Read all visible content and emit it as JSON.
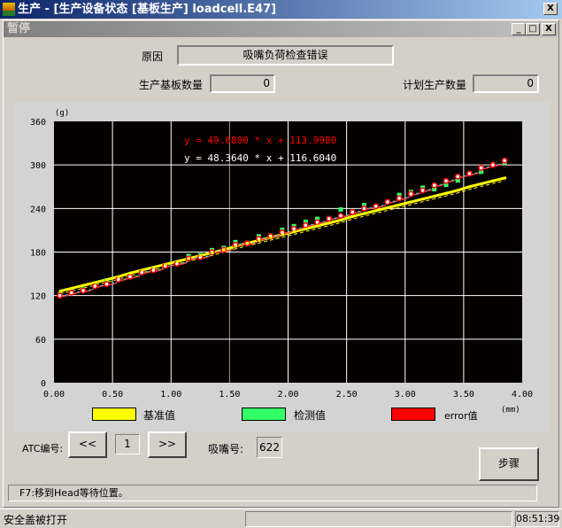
{
  "window": {
    "title": "生产 - [生产设备状态 [基板生产] loadcell.E47]",
    "close": "X"
  },
  "child": {
    "title": "暂停",
    "min": "_",
    "max": "□",
    "close": "X"
  },
  "form": {
    "reason_label": "原因",
    "reason_value": "吸嘴负荷检查错误",
    "produced_label": "生产基板数量",
    "produced_value": "0",
    "planned_label": "计划生产数量",
    "planned_value": "0"
  },
  "chart_data": {
    "type": "scatter",
    "ylabel": "(g)",
    "xlabel": "(mm)",
    "xlim": [
      0,
      4
    ],
    "ylim": [
      0,
      360
    ],
    "xticks": [
      "0.00",
      "0.50",
      "1.00",
      "1.50",
      "2.00",
      "2.50",
      "3.00",
      "3.50",
      "4.00"
    ],
    "yticks": [
      "0",
      "60",
      "120",
      "180",
      "240",
      "300",
      "360"
    ],
    "grid": true,
    "equations": [
      {
        "text": "y = 49.6800 * x + 113.9980",
        "color": "#ff0000"
      },
      {
        "text": "y = 48.3640 * x + 116.6040",
        "color": "#ffffff"
      }
    ],
    "x": [
      0.05,
      0.15,
      0.25,
      0.35,
      0.45,
      0.55,
      0.65,
      0.75,
      0.85,
      0.95,
      1.05,
      1.15,
      1.25,
      1.35,
      1.45,
      1.55,
      1.65,
      1.75,
      1.85,
      1.95,
      2.05,
      2.15,
      2.25,
      2.35,
      2.45,
      2.55,
      2.65,
      2.75,
      2.85,
      2.95,
      3.05,
      3.15,
      3.25,
      3.35,
      3.45,
      3.55,
      3.65,
      3.75,
      3.85
    ],
    "series": [
      {
        "name": "基准值",
        "color": "#ffff00",
        "values": [
          126,
          130,
          134,
          138,
          142,
          146,
          151,
          155,
          159,
          163,
          167,
          171,
          175,
          179,
          183,
          188,
          192,
          196,
          200,
          204,
          208,
          212,
          216,
          220,
          224,
          229,
          233,
          237,
          241,
          245,
          249,
          253,
          257,
          261,
          265,
          270,
          274,
          278,
          282
        ]
      },
      {
        "name": "检测值",
        "color": "#33ff66",
        "values": [
          121,
          124,
          128,
          133,
          140,
          142,
          146,
          152,
          156,
          161,
          165,
          174,
          175,
          182,
          185,
          193,
          192,
          201,
          202,
          210,
          215,
          221,
          225,
          226,
          238,
          235,
          244,
          243,
          249,
          258,
          262,
          268,
          266,
          272,
          278,
          288,
          290,
          300,
          303
        ]
      },
      {
        "name": "error值",
        "color": "#ff0000",
        "values": [
          120,
          124,
          127,
          133,
          136,
          142,
          146,
          152,
          155,
          161,
          164,
          171,
          173,
          180,
          183,
          190,
          192,
          198,
          202,
          207,
          212,
          217,
          221,
          226,
          230,
          235,
          240,
          243,
          249,
          254,
          260,
          265,
          272,
          278,
          284,
          288,
          296,
          300,
          306
        ]
      }
    ]
  },
  "controls": {
    "atc_label": "ATC编号:",
    "prev": "<<",
    "atc_value": "1",
    "next": ">>",
    "nozzle_label": "吸嘴号:",
    "nozzle_value": "622",
    "step_button": "步骤"
  },
  "message": "F7:移到Head等待位置。",
  "status": {
    "text": "安全盖被打开",
    "panel": "",
    "time": "08:51:39"
  }
}
